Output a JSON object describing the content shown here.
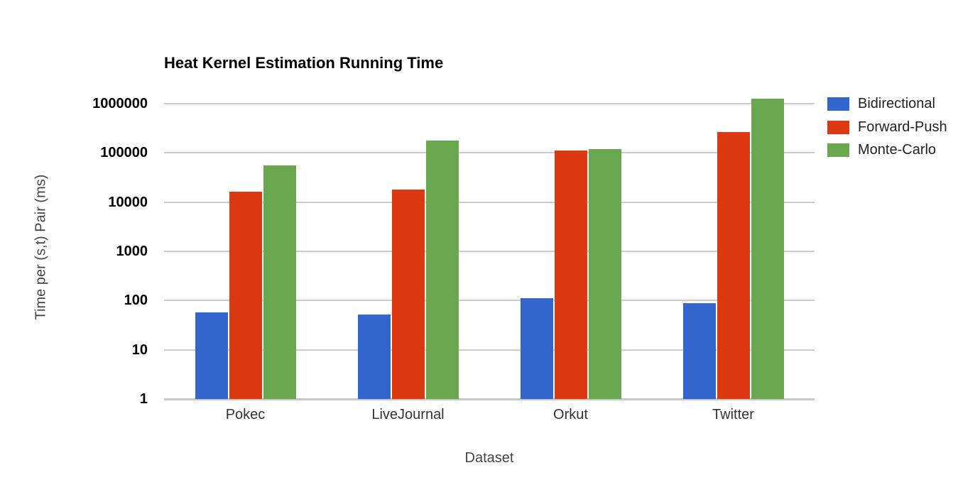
{
  "chart_data": {
    "type": "bar",
    "title": "Heat Kernel Estimation Running Time",
    "xlabel": "Dataset",
    "ylabel": "Time per (s,t) Pair (ms)",
    "categories": [
      "Pokec",
      "LiveJournal",
      "Orkut",
      "Twitter"
    ],
    "series": [
      {
        "name": "Bidirectional",
        "color": "#3366CC",
        "values": [
          57,
          52,
          112,
          90
        ]
      },
      {
        "name": "Forward-Push",
        "color": "#DC3912",
        "values": [
          16500,
          18000,
          110000,
          265000
        ]
      },
      {
        "name": "Monte-Carlo",
        "color": "#6AA84F",
        "values": [
          56000,
          178000,
          120000,
          1260000
        ]
      }
    ],
    "y_scale": "log",
    "ylim": [
      1,
      1000000
    ],
    "y_ticks": [
      1,
      10,
      100,
      1000,
      10000,
      100000,
      1000000
    ],
    "y_tick_labels": [
      "1",
      "10",
      "100",
      "1000",
      "10000",
      "100000",
      "1000000"
    ],
    "grid": true,
    "legend_position": "right"
  },
  "colors": {
    "background": "#ffffff",
    "grid": "#cccccc",
    "baseline": "#c9c9c9",
    "title_text": "#000000",
    "tick_text": "#000000",
    "category_text": "#333333",
    "axis_title_text": "#444444",
    "legend_text": "#222222"
  }
}
